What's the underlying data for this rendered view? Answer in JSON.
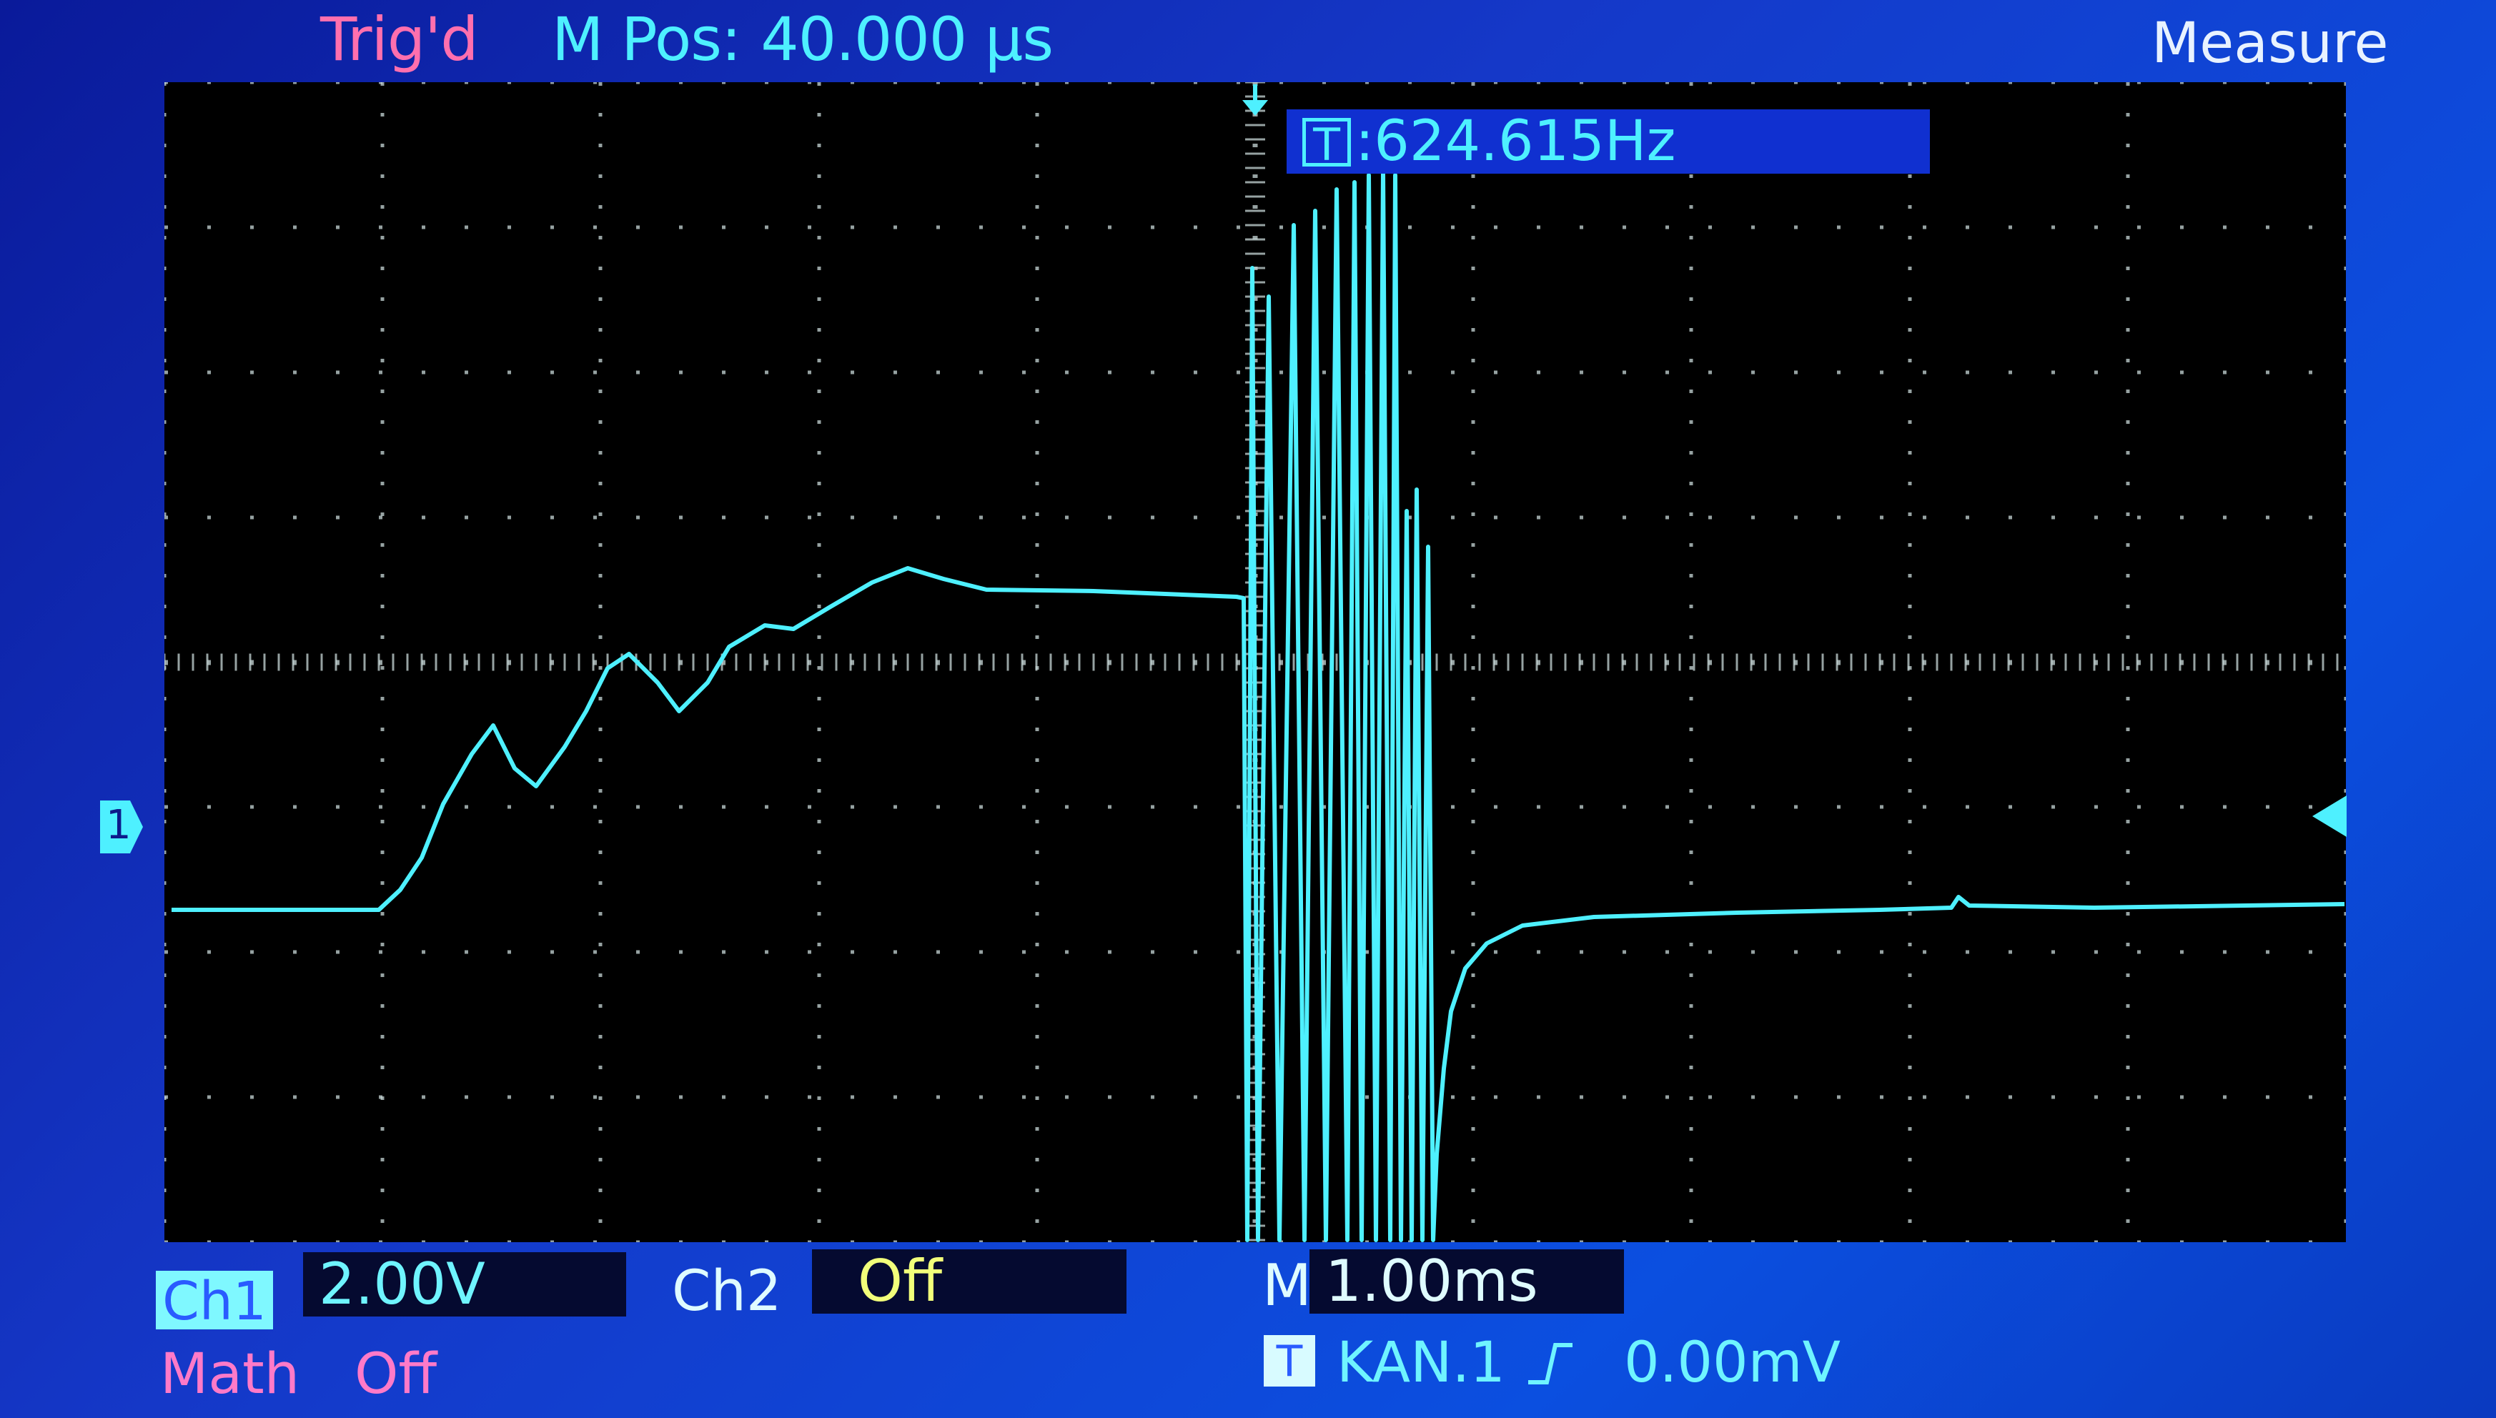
{
  "status": {
    "trigger_state": "Trig'd",
    "m_pos_label": "M Pos:",
    "m_pos_value": "40.000 µs"
  },
  "menu": {
    "title": "Measure"
  },
  "measurement": {
    "source_icon": "T",
    "text": ":624.615Hz"
  },
  "markers": {
    "ch1": "1",
    "trigger_level_icon": "arrow-left-icon",
    "trigger_position_icon": "arrow-down-icon"
  },
  "bottom": {
    "ch1_label": "Ch1",
    "ch1_scale": "2.00V",
    "ch2_label": "Ch2",
    "ch2_state": "Off",
    "timebase_label": "M",
    "timebase_value": "1.00ms",
    "math_label": "Math",
    "math_state": "Off",
    "trigger_icon": "T",
    "trigger_source": "KAN.1",
    "trigger_slope_icon": "rising-edge-icon",
    "trigger_level": "0.00mV"
  },
  "colors": {
    "background": "#1538c8",
    "trace": "#4ef0ff",
    "trigger_text": "#ff6fae",
    "math_text": "#ff7ac8",
    "ch2_state": "#f2ff7a"
  }
}
